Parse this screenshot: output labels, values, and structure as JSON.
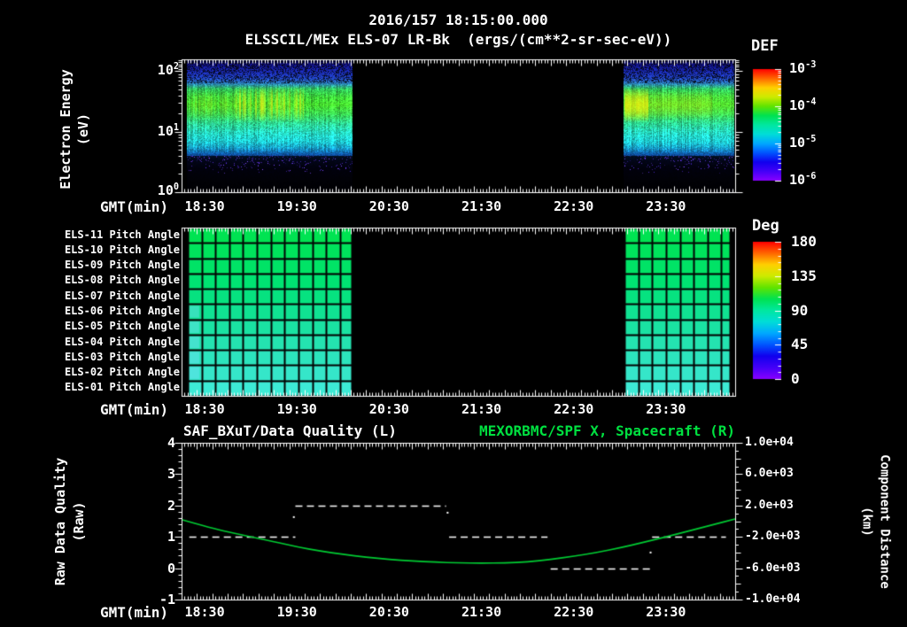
{
  "header": {
    "datetime": "2016/157 18:15:00.000",
    "instrument_title": "ELSSCIL/MEx ELS-07 LR-Bk  (ergs/(cm**2-sr-sec-eV))"
  },
  "axes": {
    "x_label": "GMT(min)",
    "x_tick_labels": [
      "18:30",
      "19:30",
      "20:30",
      "21:30",
      "22:30",
      "23:30"
    ]
  },
  "spectrogram": {
    "y_label_line1": "Electron Energy",
    "y_label_line2": "(eV)",
    "y_tick_exponents": [
      2,
      1,
      0
    ],
    "colorbar": {
      "title": "DEF",
      "unit": "ergs/(cm**2-sr-sec-eV)",
      "tick_exponents": [
        -3,
        -4,
        -5,
        -6
      ]
    }
  },
  "pitch": {
    "colorbar": {
      "title": "Deg",
      "tick_labels": [
        "180",
        "135",
        "90",
        "45",
        "0"
      ]
    }
  },
  "bottom": {
    "left_title": "SAF_BXuT/Data Quality (L)",
    "right_title": "MEXORBMC/SPF X, Spacecraft (R)",
    "left_axis_label_line1": "Raw Data Quality",
    "left_axis_label_line2": "(Raw)",
    "left_tick_labels": [
      "4",
      "3",
      "2",
      "1",
      "0",
      "-1"
    ],
    "right_axis_label_line1": "Component Distance",
    "right_axis_label_line2": "(km)",
    "right_tick_labels": [
      "1.0e+04",
      "6.0e+03",
      "2.0e+03",
      "-2.0e+03",
      "-6.0e+03",
      "-1.0e+04"
    ]
  },
  "colors": {
    "background": "#000000",
    "foreground": "#ffffff",
    "title_green": "#00e040",
    "curve_green": "#00cc33",
    "rainbow": [
      "#8800ff",
      "#4400f8",
      "#1100ee",
      "#0055ff",
      "#00a8ff",
      "#00ddd8",
      "#00e8a0",
      "#00e251",
      "#60e400",
      "#cdeb00",
      "#ffd000",
      "#ff6600",
      "#ff0000"
    ]
  },
  "chart_data": [
    {
      "id": "electron_energy_spectrogram",
      "type": "heatmap",
      "title": "ELSSCIL/MEx ELS-07 LR-Bk",
      "units": "ergs/(cm**2-sr-sec-eV)",
      "x_axis": {
        "label": "GMT(min)",
        "start": "2016/157 18:15:00.000",
        "span_minutes": 360,
        "tick_minutes": [
          15,
          75,
          135,
          195,
          255,
          315
        ],
        "tick_labels": [
          "18:30",
          "19:30",
          "20:30",
          "21:30",
          "22:30",
          "23:30"
        ]
      },
      "y_axis": {
        "label": "Electron Energy (eV)",
        "scale": "log",
        "range_ev": [
          1,
          150
        ]
      },
      "value_axis": {
        "label": "DEF",
        "log10_range": [
          -6,
          -3
        ]
      },
      "data_blocks": [
        {
          "t0_min": 3,
          "t1_min": 111,
          "description": "data present ~18:18-20:06"
        },
        {
          "t0_min": 287,
          "t1_min": 359,
          "description": "data present ~23:02-00:14"
        }
      ],
      "no_data_gap": {
        "t0_min": 111,
        "t1_min": 287
      },
      "vertical_profile": [
        [
          0.0,
          "#04041e"
        ],
        [
          0.035,
          "#10107e"
        ],
        [
          0.09,
          "#1a2ab2"
        ],
        [
          0.14,
          "#2244c4"
        ],
        [
          0.18,
          "#2a80b8"
        ],
        [
          0.22,
          "#30c45c"
        ],
        [
          0.28,
          "#3eda3a"
        ],
        [
          0.34,
          "#46e02e"
        ],
        [
          0.41,
          "#3ada52"
        ],
        [
          0.48,
          "#2edb92"
        ],
        [
          0.55,
          "#26dcc0"
        ],
        [
          0.61,
          "#1fcfd2"
        ],
        [
          0.66,
          "#18a2c8"
        ],
        [
          0.71,
          "#0e56a6"
        ],
        [
          0.76,
          "#0a1a6e"
        ],
        [
          0.82,
          "#06063a"
        ],
        [
          0.92,
          "#03031a"
        ],
        [
          1.0,
          "#02020e"
        ]
      ],
      "hotspots": [
        {
          "t0": 34,
          "t1": 79,
          "frac0": 0.2,
          "frac1": 0.47,
          "color": "#e6ea16",
          "strength": 0.8,
          "patchy": true
        },
        {
          "t0": 6,
          "t1": 34,
          "frac0": 0.23,
          "frac1": 0.45,
          "color": "#aadf1e",
          "strength": 0.35,
          "patchy": true
        },
        {
          "t0": 288,
          "t1": 303,
          "frac0": 0.21,
          "frac1": 0.47,
          "color": "#f2ee0e",
          "strength": 0.85,
          "patchy": false
        },
        {
          "t0": 303,
          "t1": 345,
          "frac0": 0.23,
          "frac1": 0.45,
          "color": "#cfe816",
          "strength": 0.35,
          "patchy": false
        },
        {
          "t0": 345,
          "t1": 359,
          "frac0": 0.24,
          "frac1": 0.44,
          "color": "#9ade20",
          "strength": 0.15,
          "patchy": false
        }
      ],
      "noise": {
        "speckle_below_frac": 0.72,
        "speckle_colors": [
          "#5028c8",
          "#7040e8",
          "#3820a0"
        ],
        "top_mottle_above_frac": 0.18
      }
    },
    {
      "id": "pitch_angle_rows",
      "type": "heatmap",
      "rows": [
        {
          "label": "ELS-11 Pitch Angle",
          "approx_deg": 103,
          "color": "#00e352"
        },
        {
          "label": "ELS-10 Pitch Angle",
          "approx_deg": 101,
          "color": "#00e35c"
        },
        {
          "label": "ELS-09 Pitch Angle",
          "approx_deg": 100,
          "color": "#00e366"
        },
        {
          "label": "ELS-08 Pitch Angle",
          "approx_deg": 98,
          "color": "#00e372"
        },
        {
          "label": "ELS-07 Pitch Angle",
          "approx_deg": 96,
          "color": "#06e280"
        },
        {
          "label": "ELS-06 Pitch Angle",
          "approx_deg": 93,
          "color": "#10e292"
        },
        {
          "label": "ELS-05 Pitch Angle",
          "approx_deg": 90,
          "color": "#1ae2a2"
        },
        {
          "label": "ELS-04 Pitch Angle",
          "approx_deg": 88,
          "color": "#24e3b0"
        },
        {
          "label": "ELS-03 Pitch Angle",
          "approx_deg": 86,
          "color": "#2ce4bd"
        },
        {
          "label": "ELS-02 Pitch Angle",
          "approx_deg": 84,
          "color": "#35e6c9"
        },
        {
          "label": "ELS-01 Pitch Angle",
          "approx_deg": 82,
          "color": "#3dead5"
        }
      ],
      "deg_scale": {
        "min": 0,
        "max": 180,
        "ticks": [
          180,
          135,
          90,
          45,
          0
        ]
      },
      "data_blocks": [
        {
          "t0_min": 4,
          "t1_min": 111
        },
        {
          "t0_min": 288,
          "t1_min": 357
        }
      ],
      "cell_width_minutes": 9,
      "grid_color": "#030303"
    },
    {
      "id": "data_quality_and_spacecraft_x",
      "type": "line",
      "x_axis": {
        "label": "GMT(min)",
        "span_minutes": 360
      },
      "left_axis": {
        "label": "Raw Data Quality (Raw)",
        "range": [
          -1,
          4
        ]
      },
      "right_axis": {
        "label": "Component Distance (km)",
        "range": [
          -10000,
          10000
        ]
      },
      "left_series": {
        "name": "SAF_BXuT/Data Quality (L)",
        "color": "#ffffff",
        "style": "dashed",
        "segments": [
          {
            "quality": 1,
            "t0_min": 5,
            "t1_min": 74
          },
          {
            "quality": 2,
            "t0_min": 74,
            "t1_min": 172
          },
          {
            "quality": 1,
            "t0_min": 174,
            "t1_min": 238
          },
          {
            "quality": 0,
            "t0_min": 240,
            "t1_min": 305
          },
          {
            "quality": 1,
            "t0_min": 306,
            "t1_min": 354
          }
        ],
        "transition_points": [
          [
            73,
            1.63
          ],
          [
            173,
            1.77
          ],
          [
            305,
            0.5
          ]
        ]
      },
      "right_series": {
        "name": "MEXORBMC/SPF X, Spacecraft (R)",
        "color": "#00cc33",
        "style": "solid",
        "t_min": [
          0,
          20,
          40,
          60,
          75,
          90,
          105,
          120,
          135,
          150,
          165,
          180,
          195,
          210,
          225,
          240,
          255,
          270,
          285,
          300,
          315,
          330,
          345,
          360
        ],
        "x_km": [
          200,
          -920,
          -1800,
          -2600,
          -3280,
          -3800,
          -4240,
          -4600,
          -4880,
          -5080,
          -5240,
          -5320,
          -5360,
          -5320,
          -5200,
          -4880,
          -4480,
          -4000,
          -3400,
          -2720,
          -2000,
          -1240,
          -480,
          280
        ]
      }
    }
  ]
}
